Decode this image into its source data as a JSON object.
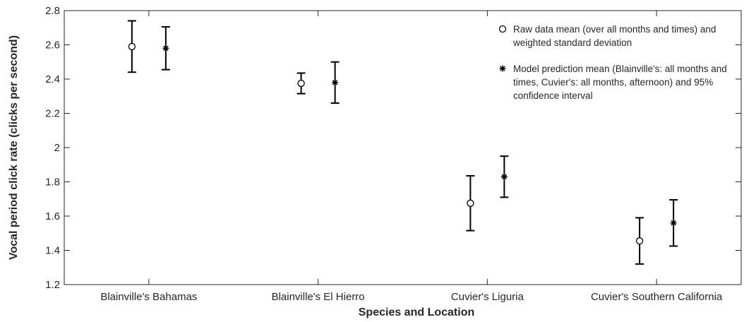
{
  "chart_data": {
    "type": "errorbar",
    "xlabel": "Species and Location",
    "ylabel": "Vocal period click rate (clicks per second)",
    "categories": [
      "Blainville's Bahamas",
      "Blainville's El Hierro",
      "Cuvier's Liguria",
      "Cuvier's Southern California"
    ],
    "series": [
      {
        "name": "Raw data mean (over all months and times) and weighted standard deviation",
        "color": "#000000",
        "marker": "o",
        "values": [
          2.59,
          2.375,
          1.675,
          1.455
        ],
        "errors": [
          0.15,
          0.06,
          0.16,
          0.135
        ]
      },
      {
        "name": "Model prediction mean (Blainville's: all months and times, Cuvier's: all months, afternoon) and 95% confidence interval",
        "color": "#000000",
        "marker": "*",
        "values": [
          2.58,
          2.38,
          1.83,
          1.56
        ],
        "errors": [
          0.125,
          0.12,
          0.12,
          0.135
        ]
      }
    ],
    "ylim": [
      1.2,
      2.8
    ],
    "yticks": [
      1.2,
      1.4,
      1.6,
      1.8,
      2,
      2.2,
      2.4,
      2.6,
      2.8
    ],
    "grid": false,
    "legend": "upper right"
  }
}
